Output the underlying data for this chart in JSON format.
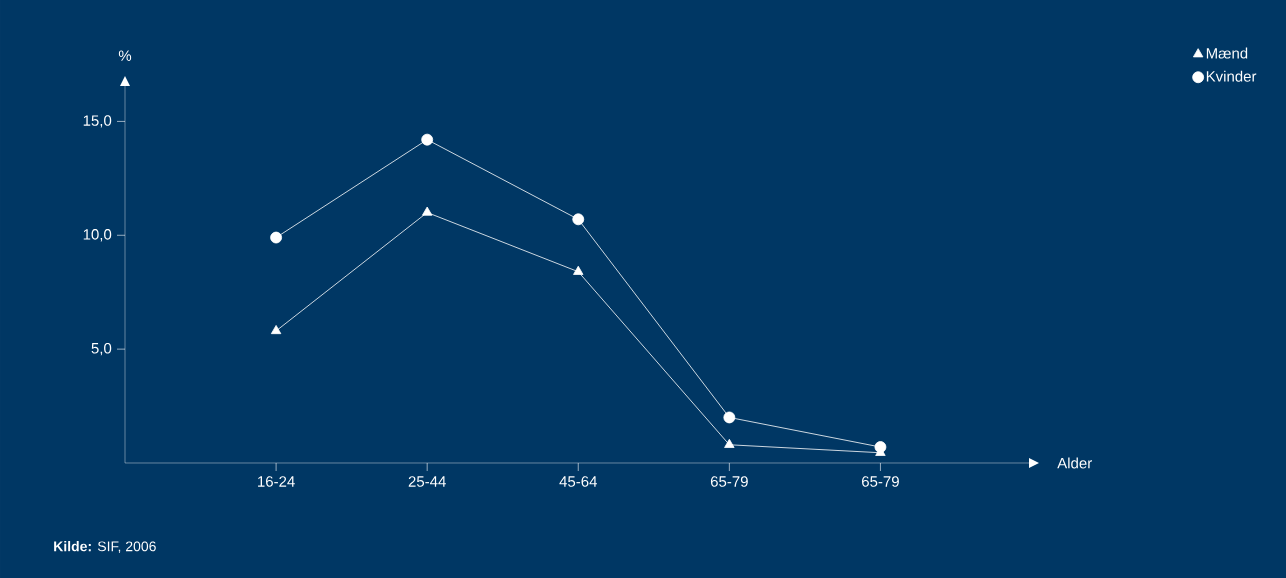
{
  "chart_data": {
    "type": "line",
    "xlabel": "Alder",
    "ylabel": "%",
    "categories": [
      "16-24",
      "25-44",
      "45-64",
      "65-79",
      "65-79"
    ],
    "series": [
      {
        "name": "Mænd",
        "color": "#ffffff",
        "marker": "triangle",
        "values": [
          5.8,
          11.0,
          8.4,
          0.8,
          0.45
        ]
      },
      {
        "name": "Kvinder",
        "color": "#ffffff",
        "marker": "circle",
        "values": [
          9.9,
          14.2,
          10.7,
          2.0,
          0.7
        ]
      }
    ],
    "ylim": [
      0,
      16.6
    ],
    "yticks": [
      {
        "value": 5,
        "label": "5,0"
      },
      {
        "value": 10,
        "label": "10,0"
      },
      {
        "value": 15,
        "label": "15,0"
      }
    ],
    "grid": false,
    "legend": "top right",
    "line_style": "solid",
    "annotations": [
      "**Kilde:** SIF, 2006"
    ]
  }
}
